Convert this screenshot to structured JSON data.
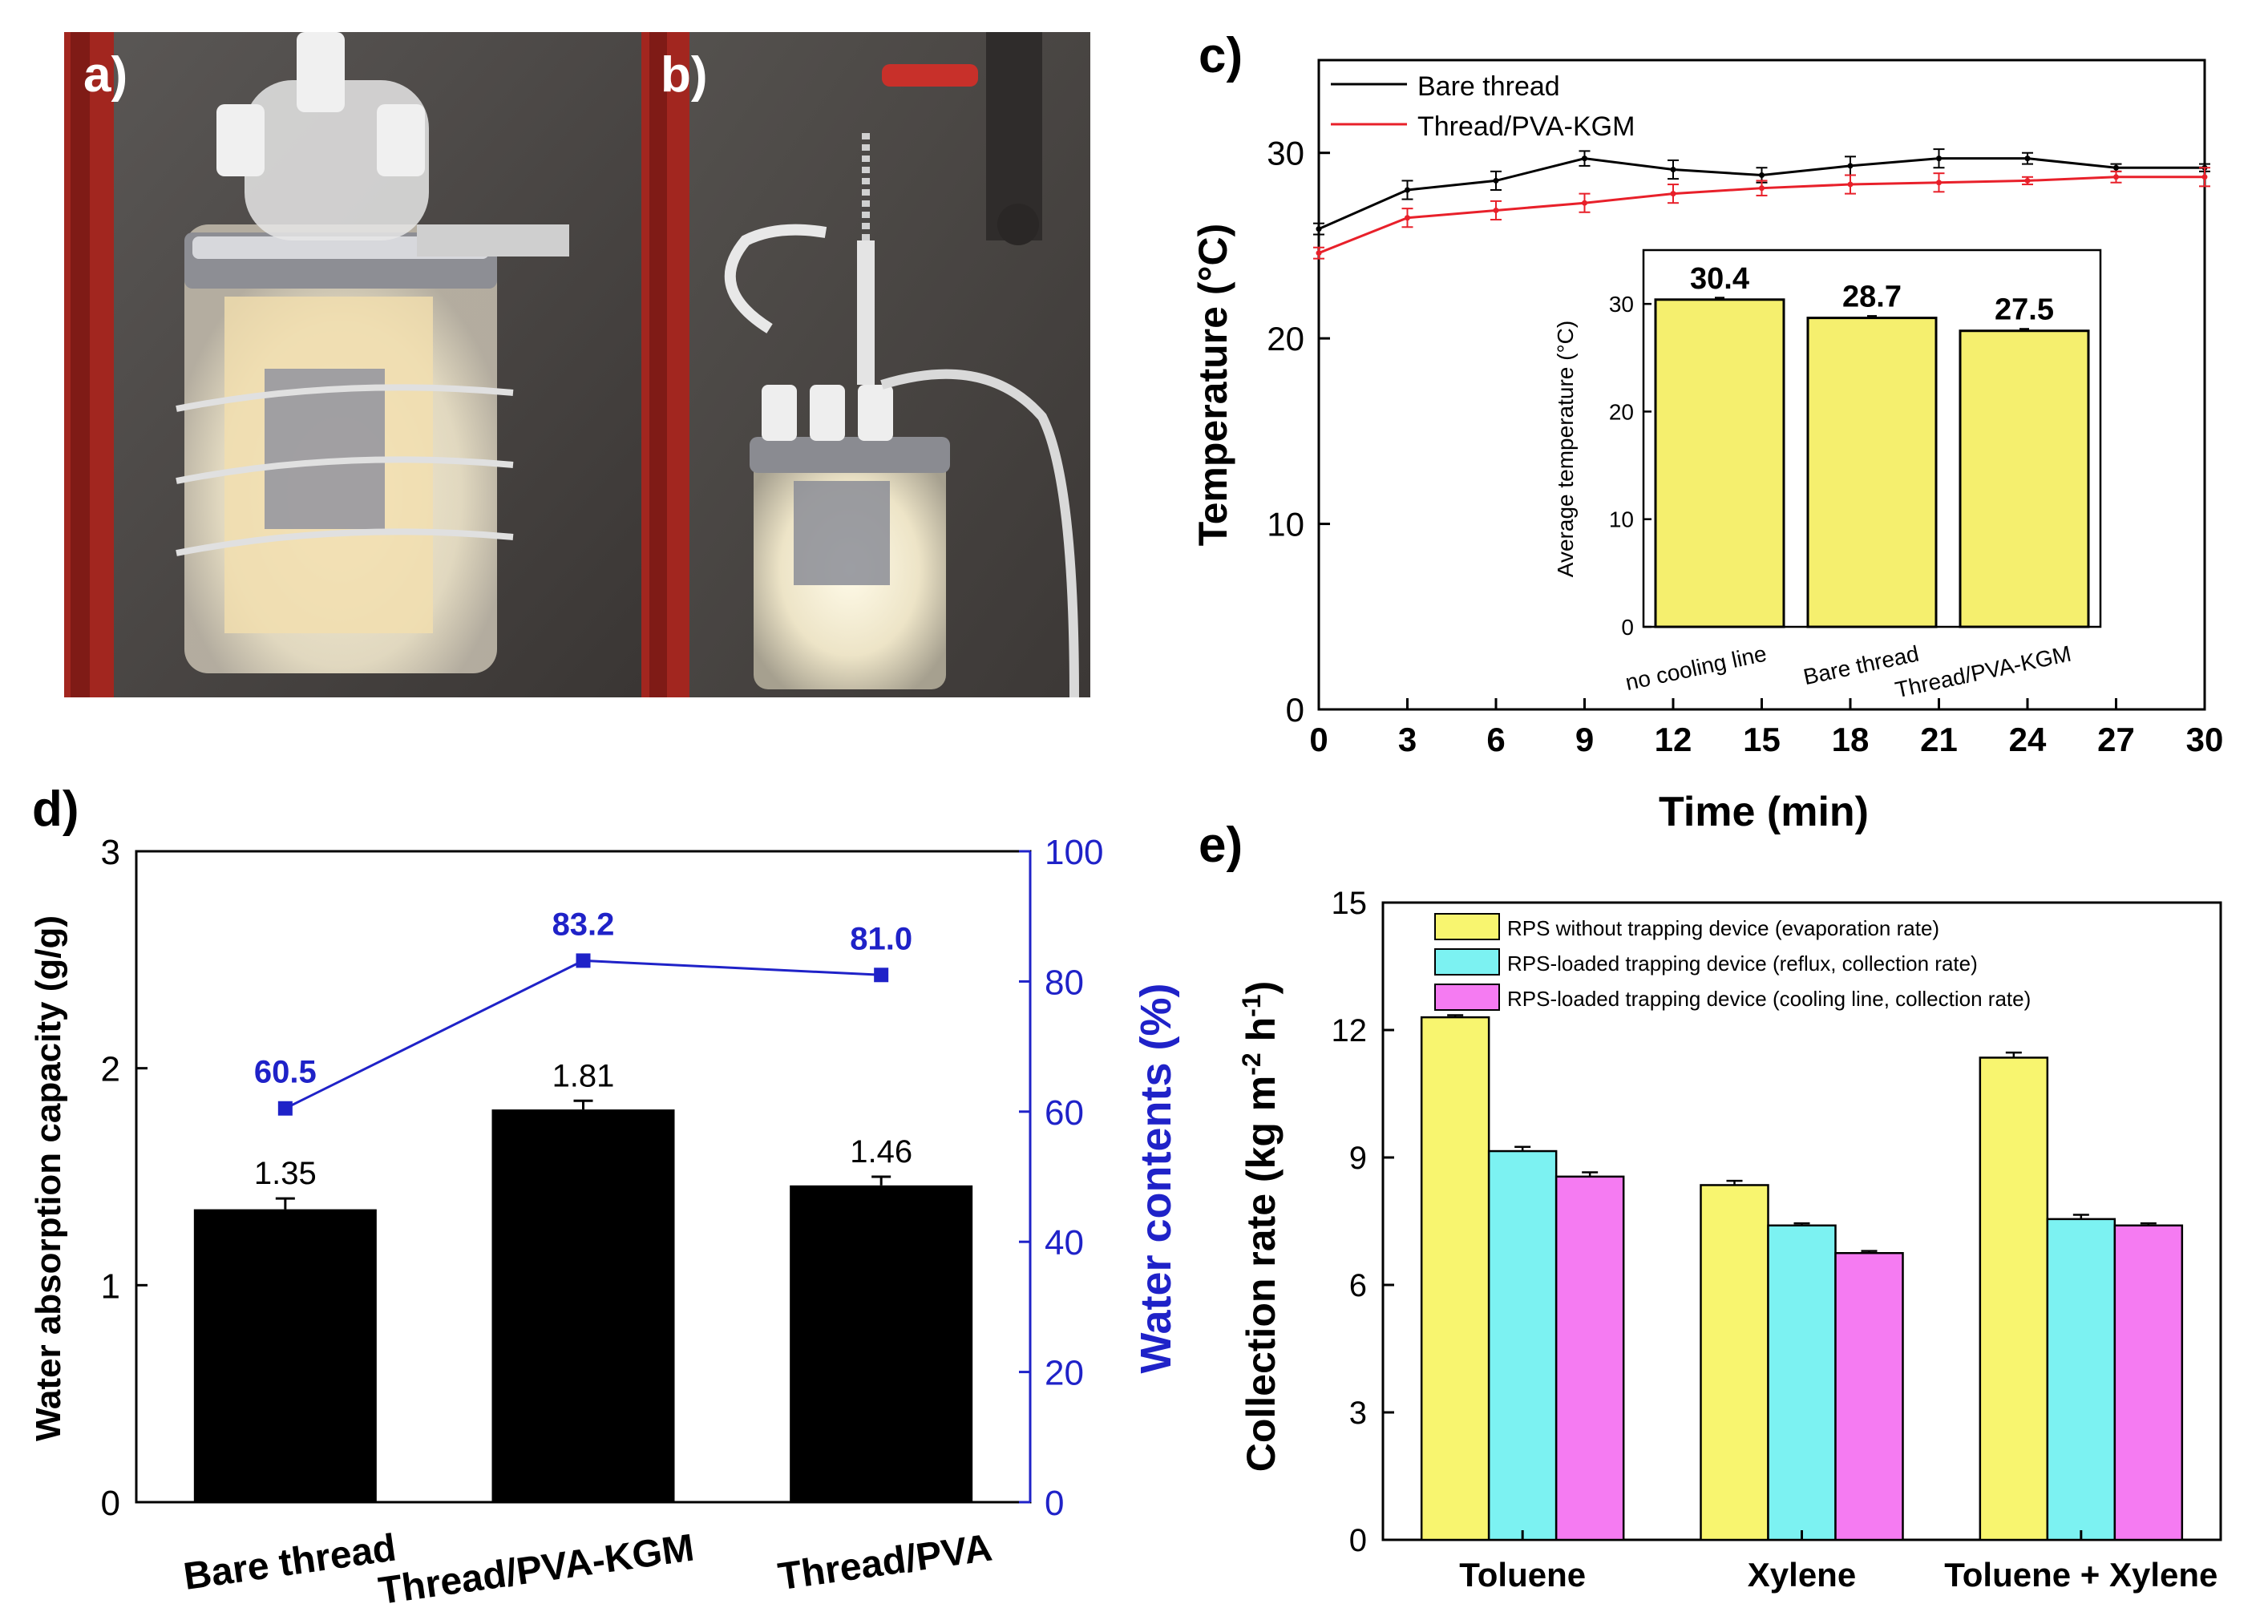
{
  "panels": {
    "a": {
      "label": "a)",
      "description": "photo"
    },
    "b": {
      "label": "b)",
      "description": "photo"
    }
  },
  "chart_data": [
    {
      "id": "c",
      "panel_label": "c)",
      "type": "line",
      "xlabel": "Time (min)",
      "ylabel": "Temperature (°C)",
      "xlim": [
        0,
        30
      ],
      "ylim": [
        0,
        35
      ],
      "xticks": [
        0,
        3,
        6,
        9,
        12,
        15,
        18,
        21,
        24,
        27,
        30
      ],
      "yticks": [
        0,
        10,
        20,
        30
      ],
      "x": [
        0,
        3,
        6,
        9,
        12,
        15,
        18,
        21,
        24,
        27,
        30
      ],
      "series": [
        {
          "name": "Bare thread",
          "color": "#000000",
          "values": [
            25.9,
            28.0,
            28.5,
            29.7,
            29.1,
            28.8,
            29.3,
            29.7,
            29.7,
            29.2,
            29.2
          ],
          "errors": [
            0.3,
            0.5,
            0.5,
            0.4,
            0.5,
            0.4,
            0.5,
            0.5,
            0.3,
            0.2,
            0.2
          ]
        },
        {
          "name": "Thread/PVA-KGM",
          "color": "#e8202a",
          "values": [
            24.6,
            26.5,
            26.9,
            27.3,
            27.8,
            28.1,
            28.3,
            28.4,
            28.5,
            28.7,
            28.7
          ],
          "errors": [
            0.3,
            0.5,
            0.5,
            0.5,
            0.5,
            0.4,
            0.5,
            0.5,
            0.2,
            0.3,
            0.5
          ]
        }
      ],
      "legend_position": "top-left",
      "inset": {
        "type": "bar",
        "ylabel": "Average temperature (°C)",
        "categories": [
          "no cooling line",
          "Bare thread",
          "Thread/PVA-KGM"
        ],
        "values": [
          30.4,
          28.7,
          27.5
        ],
        "data_labels": [
          "30.4",
          "28.7",
          "27.5"
        ],
        "ylim": [
          0,
          35
        ],
        "yticks": [
          0,
          10,
          20,
          30
        ],
        "bar_color": "#f5ef6e"
      }
    },
    {
      "id": "d",
      "panel_label": "d)",
      "type": "bar",
      "categories": [
        "Bare thread",
        "Thread/PVA-KGM",
        "Thread/PVA"
      ],
      "ylabel": "Water absorption capacity (g/g)",
      "ylim": [
        0,
        3
      ],
      "yticks": [
        0,
        1,
        2,
        3
      ],
      "values": [
        1.35,
        1.81,
        1.46
      ],
      "errors": [
        0.05,
        0.04,
        0.04
      ],
      "data_labels": [
        "1.35",
        "1.81",
        "1.46"
      ],
      "bar_color": "#000000",
      "secondary_axis": {
        "type": "line",
        "ylabel": "Water contents (%)",
        "ylim": [
          0,
          100
        ],
        "yticks": [
          0,
          20,
          40,
          60,
          80,
          100
        ],
        "values": [
          60.5,
          83.2,
          81.0
        ],
        "data_labels": [
          "60.5",
          "83.2",
          "81.0"
        ],
        "color": "#1f22c8"
      }
    },
    {
      "id": "e",
      "panel_label": "e)",
      "type": "bar",
      "categories": [
        "Toluene",
        "Xylene",
        "Toluene + Xylene"
      ],
      "ylabel_main": "Collection rate (kg m",
      "ylabel_sup1": "-2",
      "ylabel_mid": " h",
      "ylabel_sup2": "-1",
      "ylabel_end": ")",
      "ylim": [
        0,
        15
      ],
      "yticks": [
        0,
        3,
        6,
        9,
        12,
        15
      ],
      "series": [
        {
          "name": "RPS without trapping device (evaporation rate)",
          "color": "#f8f56f",
          "values": [
            12.3,
            8.35,
            11.35
          ],
          "errors": [
            0.05,
            0.1,
            0.12
          ]
        },
        {
          "name": "RPS-loaded trapping device (reflux, collection rate)",
          "color": "#7cf2f2",
          "values": [
            9.15,
            7.4,
            7.55
          ],
          "errors": [
            0.1,
            0.05,
            0.1
          ]
        },
        {
          "name": "RPS-loaded trapping device (cooling line, collection rate)",
          "color": "#f57bf2",
          "values": [
            8.55,
            6.75,
            7.4
          ],
          "errors": [
            0.1,
            0.05,
            0.05
          ]
        }
      ],
      "legend_position": "top-left"
    }
  ]
}
